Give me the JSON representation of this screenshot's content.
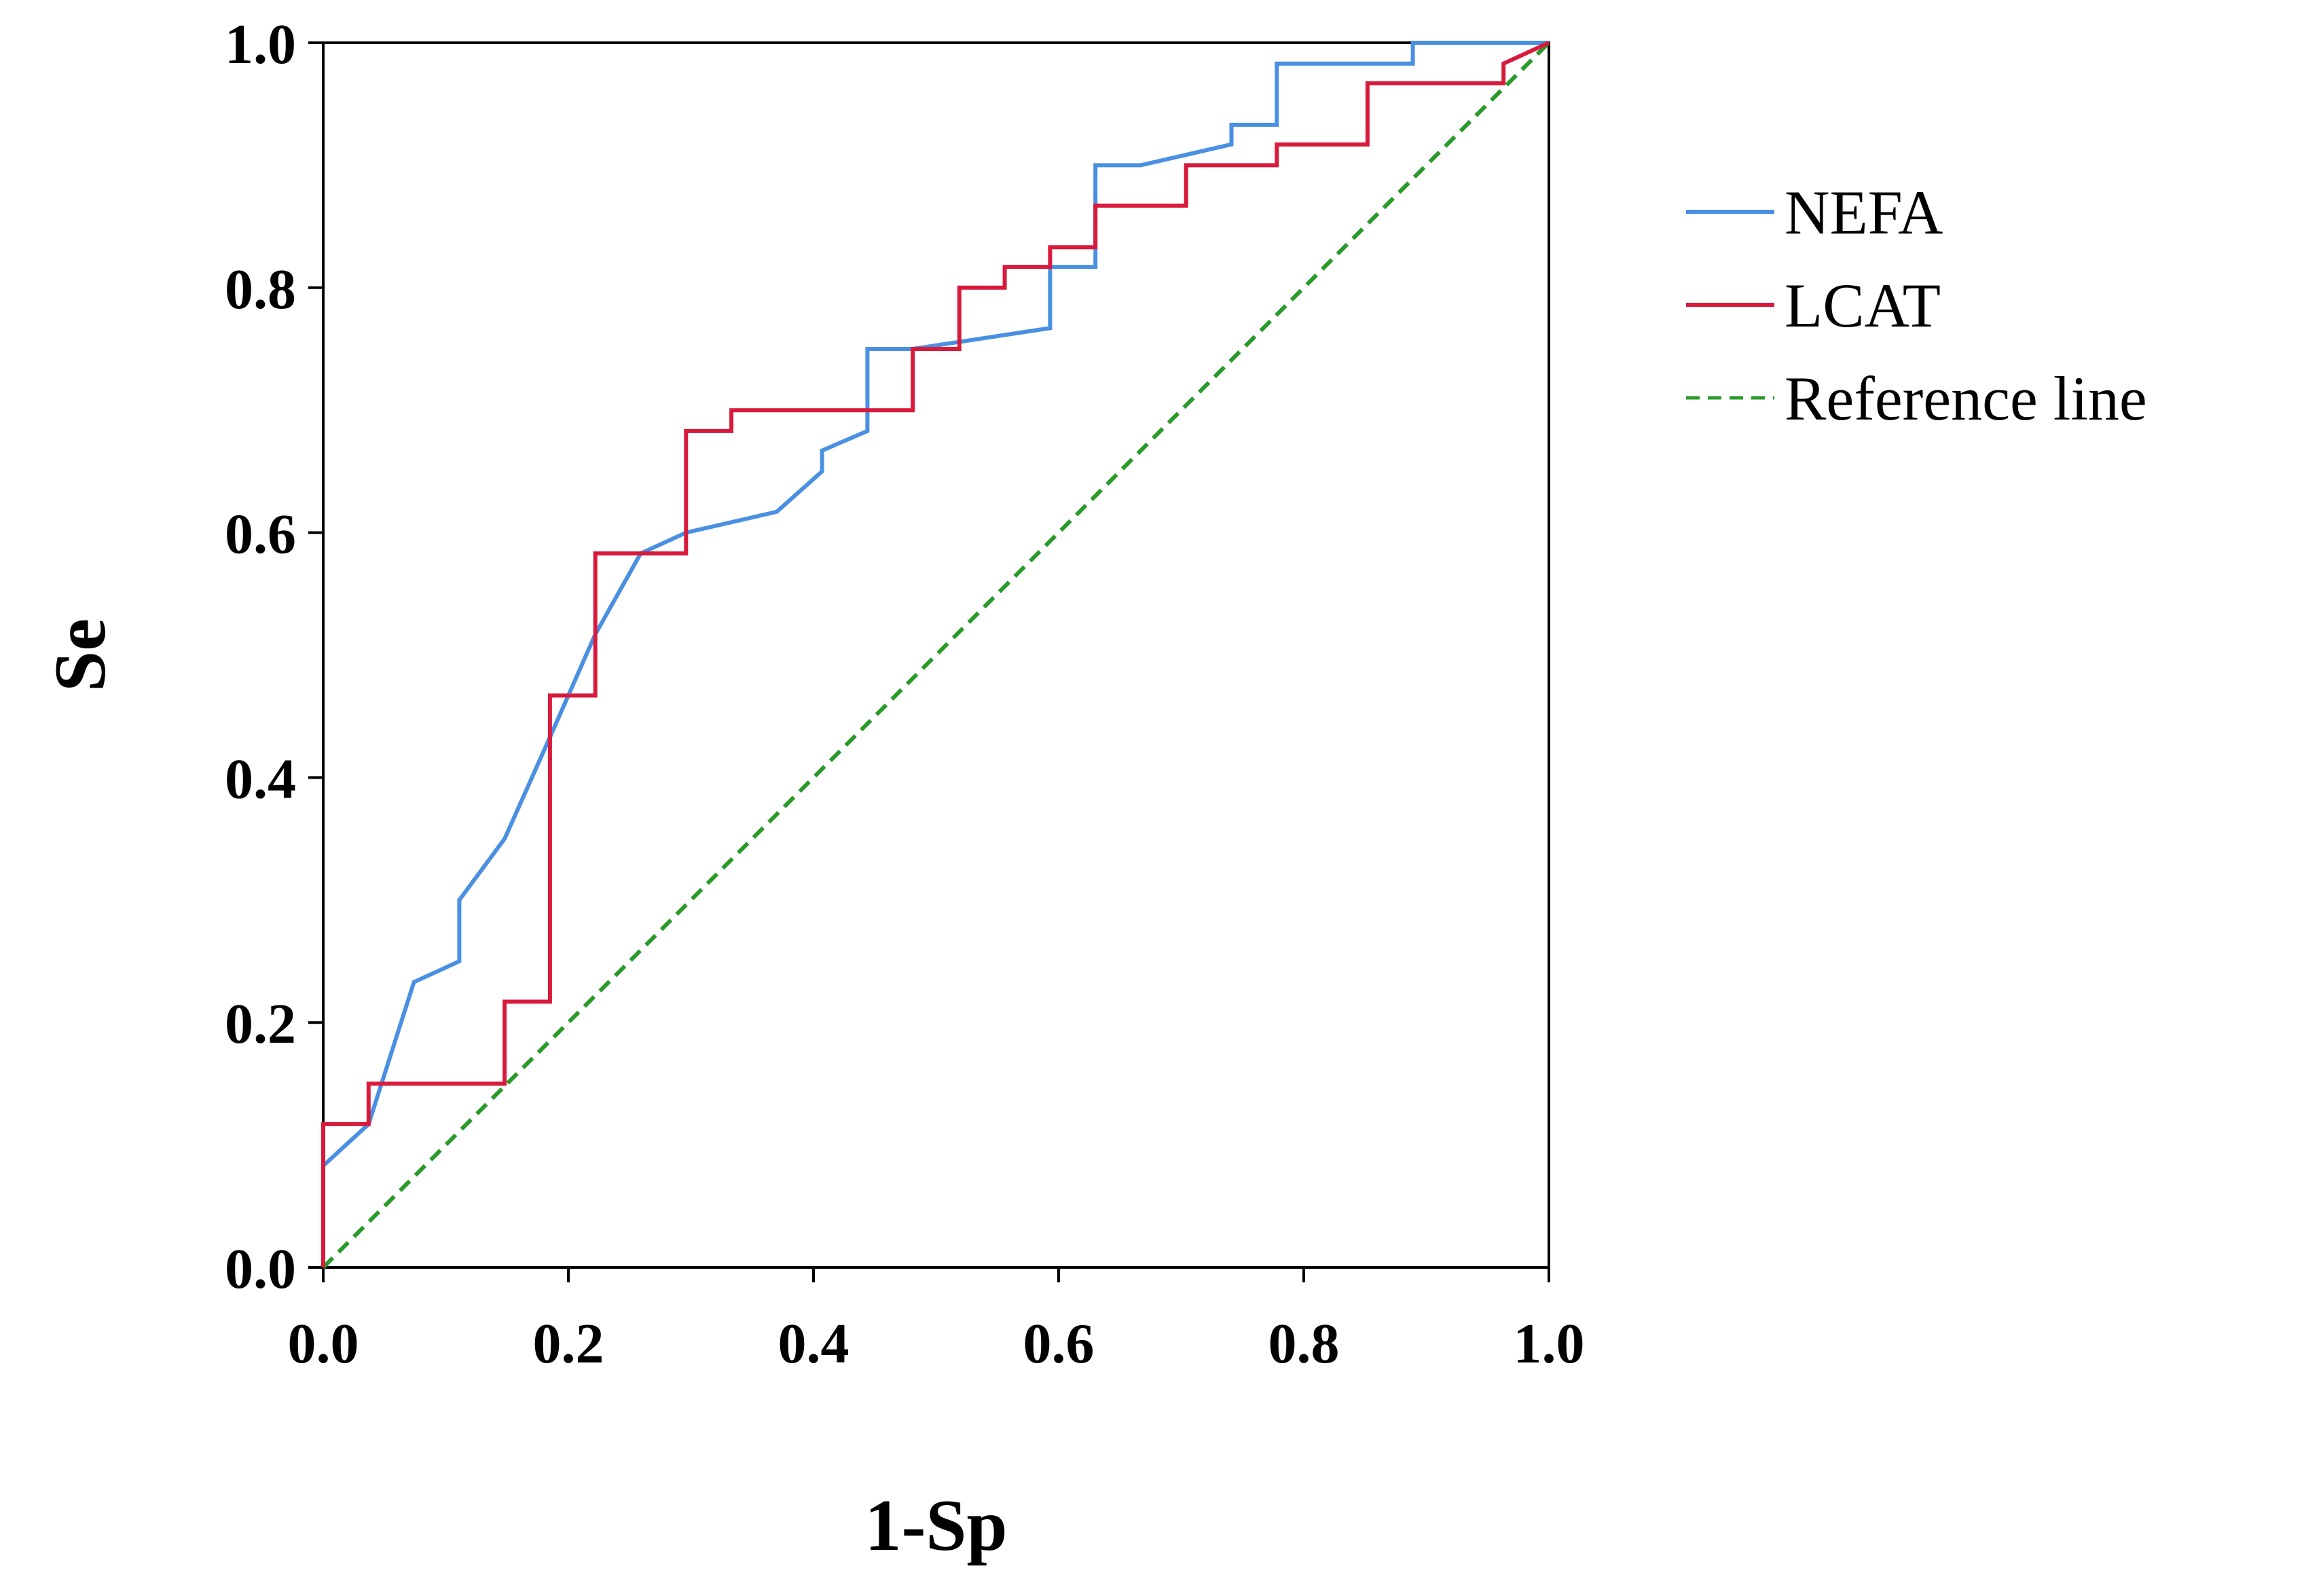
{
  "chart_data": {
    "type": "line",
    "title": "",
    "xlabel": "1-Sp",
    "ylabel": "Se",
    "xlim": [
      0,
      1
    ],
    "ylim": [
      0,
      1
    ],
    "x_ticks": [
      "0.0",
      "0.2",
      "0.4",
      "0.6",
      "0.8",
      "1.0"
    ],
    "y_ticks": [
      "0.0",
      "0.2",
      "0.4",
      "0.6",
      "0.8",
      "1.0"
    ],
    "grid": false,
    "legend_position": "right",
    "series": [
      {
        "name": "NEFA",
        "color": "#4a90e2",
        "dash": "solid",
        "points": [
          [
            0,
            0
          ],
          [
            0,
            0.083
          ],
          [
            0.037,
            0.117
          ],
          [
            0.074,
            0.233
          ],
          [
            0.111,
            0.25
          ],
          [
            0.111,
            0.3
          ],
          [
            0.148,
            0.35
          ],
          [
            0.185,
            0.433
          ],
          [
            0.222,
            0.517
          ],
          [
            0.259,
            0.583
          ],
          [
            0.296,
            0.6
          ],
          [
            0.37,
            0.617
          ],
          [
            0.407,
            0.65
          ],
          [
            0.407,
            0.667
          ],
          [
            0.444,
            0.683
          ],
          [
            0.444,
            0.75
          ],
          [
            0.481,
            0.75
          ],
          [
            0.593,
            0.767
          ],
          [
            0.593,
            0.817
          ],
          [
            0.63,
            0.817
          ],
          [
            0.63,
            0.9
          ],
          [
            0.667,
            0.9
          ],
          [
            0.741,
            0.917
          ],
          [
            0.741,
            0.933
          ],
          [
            0.778,
            0.933
          ],
          [
            0.778,
            0.983
          ],
          [
            0.889,
            0.983
          ],
          [
            0.889,
            1
          ],
          [
            1,
            1
          ]
        ]
      },
      {
        "name": "LCAT",
        "color": "#d81b3c",
        "dash": "solid",
        "points": [
          [
            0,
            0
          ],
          [
            0,
            0.117
          ],
          [
            0.037,
            0.117
          ],
          [
            0.037,
            0.15
          ],
          [
            0.148,
            0.15
          ],
          [
            0.148,
            0.217
          ],
          [
            0.185,
            0.217
          ],
          [
            0.185,
            0.467
          ],
          [
            0.222,
            0.467
          ],
          [
            0.222,
            0.583
          ],
          [
            0.296,
            0.583
          ],
          [
            0.296,
            0.683
          ],
          [
            0.333,
            0.683
          ],
          [
            0.333,
            0.7
          ],
          [
            0.481,
            0.7
          ],
          [
            0.481,
            0.75
          ],
          [
            0.519,
            0.75
          ],
          [
            0.519,
            0.8
          ],
          [
            0.556,
            0.8
          ],
          [
            0.556,
            0.817
          ],
          [
            0.593,
            0.817
          ],
          [
            0.593,
            0.833
          ],
          [
            0.63,
            0.833
          ],
          [
            0.63,
            0.867
          ],
          [
            0.704,
            0.867
          ],
          [
            0.704,
            0.9
          ],
          [
            0.778,
            0.9
          ],
          [
            0.778,
            0.917
          ],
          [
            0.852,
            0.917
          ],
          [
            0.852,
            0.967
          ],
          [
            0.963,
            0.967
          ],
          [
            0.963,
            0.983
          ],
          [
            1,
            1
          ]
        ]
      },
      {
        "name": "Reference line",
        "color": "#2a9a2a",
        "dash": "dashed",
        "points": [
          [
            0,
            0
          ],
          [
            1,
            1
          ]
        ]
      }
    ]
  }
}
